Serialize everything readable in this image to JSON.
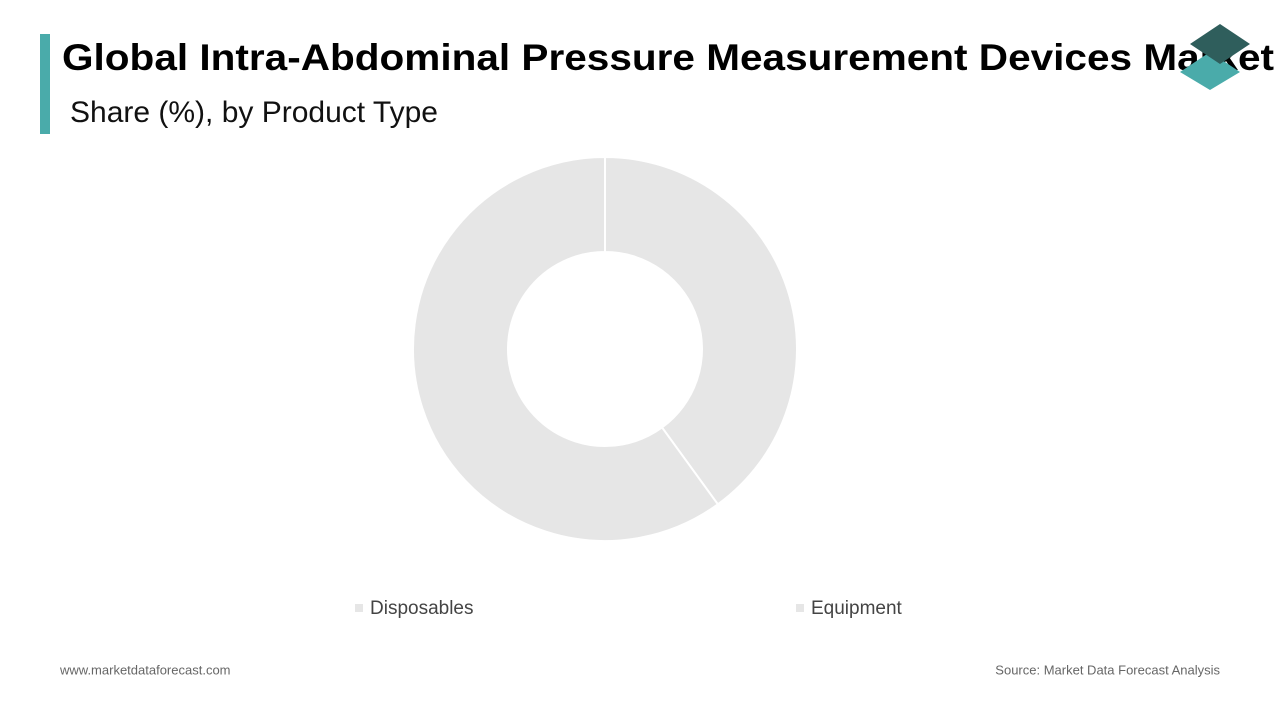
{
  "chart_data": {
    "type": "pie",
    "title": "Global Intra-Abdominal Pressure Measurement Devices Market",
    "subtitle": "Share (%), by Product Type",
    "categories": [
      "Disposables",
      "Equipment"
    ],
    "values": [
      40,
      60
    ],
    "colors": [
      "#e6e6e6",
      "#e6e6e6"
    ],
    "donut": true
  },
  "footer": {
    "website": "www.marketdataforecast.com",
    "source": "Source: Market Data Forecast Analysis"
  }
}
